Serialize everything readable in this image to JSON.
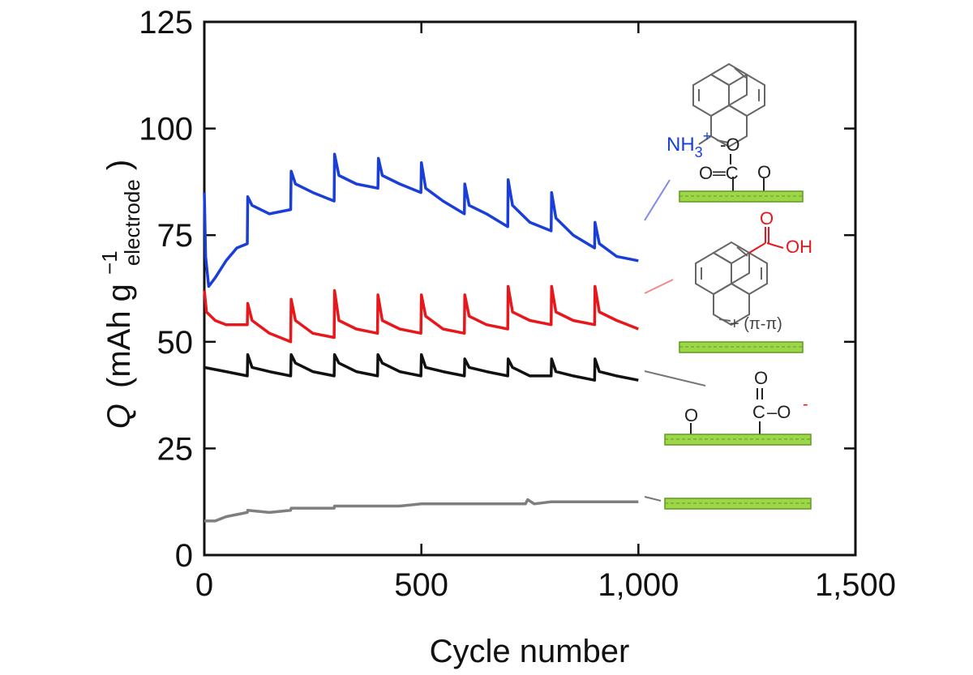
{
  "chart_data": {
    "type": "line",
    "xlabel": "Cycle number",
    "ylabel": {
      "symbol": "Q",
      "units_open": "(mAh g",
      "exponent": "−1",
      "subscript": "electrode",
      "units_close": ")"
    },
    "xlim": [
      0,
      1500
    ],
    "ylim": [
      0,
      125
    ],
    "x_ticks": [
      0,
      500,
      1000,
      1500
    ],
    "x_tick_labels": [
      "0",
      "500",
      "1,000",
      "1,500"
    ],
    "y_ticks": [
      0,
      25,
      50,
      75,
      100,
      125
    ],
    "y_tick_labels": [
      "0",
      "25",
      "50",
      "75",
      "100",
      "125"
    ],
    "grid": false,
    "legend": "none",
    "series": [
      {
        "color": "#1a3ed8",
        "points": [
          [
            0,
            85
          ],
          [
            3,
            70
          ],
          [
            10,
            63
          ],
          [
            25,
            65
          ],
          [
            50,
            69
          ],
          [
            75,
            72
          ],
          [
            99,
            73
          ],
          [
            100,
            84
          ],
          [
            110,
            82
          ],
          [
            150,
            80
          ],
          [
            199,
            81
          ],
          [
            200,
            90
          ],
          [
            210,
            87
          ],
          [
            250,
            85
          ],
          [
            299,
            83
          ],
          [
            300,
            94
          ],
          [
            310,
            89
          ],
          [
            350,
            87
          ],
          [
            400,
            86
          ],
          [
            401,
            93
          ],
          [
            410,
            89
          ],
          [
            450,
            87
          ],
          [
            499,
            85
          ],
          [
            500,
            92
          ],
          [
            510,
            86
          ],
          [
            550,
            83
          ],
          [
            599,
            80
          ],
          [
            600,
            87
          ],
          [
            610,
            82
          ],
          [
            650,
            80
          ],
          [
            699,
            77
          ],
          [
            700,
            88
          ],
          [
            710,
            82
          ],
          [
            750,
            78
          ],
          [
            799,
            76
          ],
          [
            800,
            85
          ],
          [
            810,
            79
          ],
          [
            850,
            75
          ],
          [
            899,
            72
          ],
          [
            900,
            78
          ],
          [
            910,
            73
          ],
          [
            950,
            70
          ],
          [
            1000,
            69
          ]
        ]
      },
      {
        "color": "#e8171b",
        "points": [
          [
            0,
            62
          ],
          [
            5,
            57
          ],
          [
            25,
            55
          ],
          [
            50,
            54
          ],
          [
            99,
            54
          ],
          [
            100,
            59
          ],
          [
            110,
            55
          ],
          [
            150,
            52
          ],
          [
            199,
            50
          ],
          [
            200,
            60
          ],
          [
            210,
            55
          ],
          [
            250,
            52
          ],
          [
            299,
            51
          ],
          [
            300,
            62
          ],
          [
            310,
            55
          ],
          [
            350,
            53
          ],
          [
            399,
            52
          ],
          [
            400,
            61
          ],
          [
            410,
            55
          ],
          [
            450,
            53
          ],
          [
            499,
            52
          ],
          [
            500,
            61
          ],
          [
            510,
            56
          ],
          [
            550,
            53
          ],
          [
            599,
            52
          ],
          [
            600,
            61
          ],
          [
            610,
            56
          ],
          [
            650,
            54
          ],
          [
            699,
            53
          ],
          [
            700,
            63
          ],
          [
            710,
            57
          ],
          [
            750,
            55
          ],
          [
            799,
            54
          ],
          [
            800,
            63
          ],
          [
            810,
            57
          ],
          [
            850,
            55
          ],
          [
            899,
            54
          ],
          [
            900,
            63
          ],
          [
            910,
            57
          ],
          [
            950,
            55
          ],
          [
            1000,
            53
          ]
        ]
      },
      {
        "color": "#111111",
        "points": [
          [
            0,
            44
          ],
          [
            50,
            43
          ],
          [
            99,
            42
          ],
          [
            100,
            47
          ],
          [
            110,
            44
          ],
          [
            150,
            43
          ],
          [
            199,
            42
          ],
          [
            200,
            47
          ],
          [
            210,
            45
          ],
          [
            250,
            43
          ],
          [
            299,
            42
          ],
          [
            300,
            47
          ],
          [
            310,
            45
          ],
          [
            350,
            43
          ],
          [
            399,
            42
          ],
          [
            400,
            47
          ],
          [
            410,
            45
          ],
          [
            450,
            43
          ],
          [
            499,
            42
          ],
          [
            500,
            47
          ],
          [
            510,
            44
          ],
          [
            550,
            43
          ],
          [
            599,
            42
          ],
          [
            600,
            46
          ],
          [
            610,
            44
          ],
          [
            650,
            43
          ],
          [
            699,
            42
          ],
          [
            700,
            46
          ],
          [
            710,
            44
          ],
          [
            750,
            42
          ],
          [
            799,
            42
          ],
          [
            800,
            46
          ],
          [
            810,
            43
          ],
          [
            850,
            42
          ],
          [
            899,
            41
          ],
          [
            900,
            46
          ],
          [
            910,
            43
          ],
          [
            950,
            42
          ],
          [
            1000,
            41
          ]
        ]
      },
      {
        "color": "#7f7f7f",
        "points": [
          [
            0,
            8
          ],
          [
            25,
            8
          ],
          [
            50,
            9
          ],
          [
            99,
            10
          ],
          [
            100,
            10.5
          ],
          [
            150,
            10
          ],
          [
            199,
            10.5
          ],
          [
            200,
            11
          ],
          [
            250,
            11
          ],
          [
            299,
            11
          ],
          [
            300,
            11.5
          ],
          [
            350,
            11.5
          ],
          [
            400,
            11.5
          ],
          [
            450,
            11.5
          ],
          [
            500,
            12
          ],
          [
            550,
            12
          ],
          [
            600,
            12
          ],
          [
            650,
            12
          ],
          [
            700,
            12
          ],
          [
            740,
            12
          ],
          [
            745,
            13
          ],
          [
            760,
            12
          ],
          [
            800,
            12.5
          ],
          [
            850,
            12.5
          ],
          [
            900,
            12.5
          ],
          [
            950,
            12.5
          ],
          [
            1000,
            12.5
          ]
        ]
      }
    ],
    "annotations": {
      "amine_group": "NH",
      "amine_sub": "3",
      "amine_sup": "+",
      "anion_label": "-O",
      "carboxylate_top": "O═C",
      "ketone_o": "O",
      "acid_oh": "OH",
      "acid_o": "O",
      "pi_label": "+ (π-π)",
      "carboxylate_o_top": "O",
      "carboxylate_c": "C",
      "carboxylate_o": "–O",
      "carboxylate_minus": "-",
      "oxide_o": "O"
    }
  }
}
